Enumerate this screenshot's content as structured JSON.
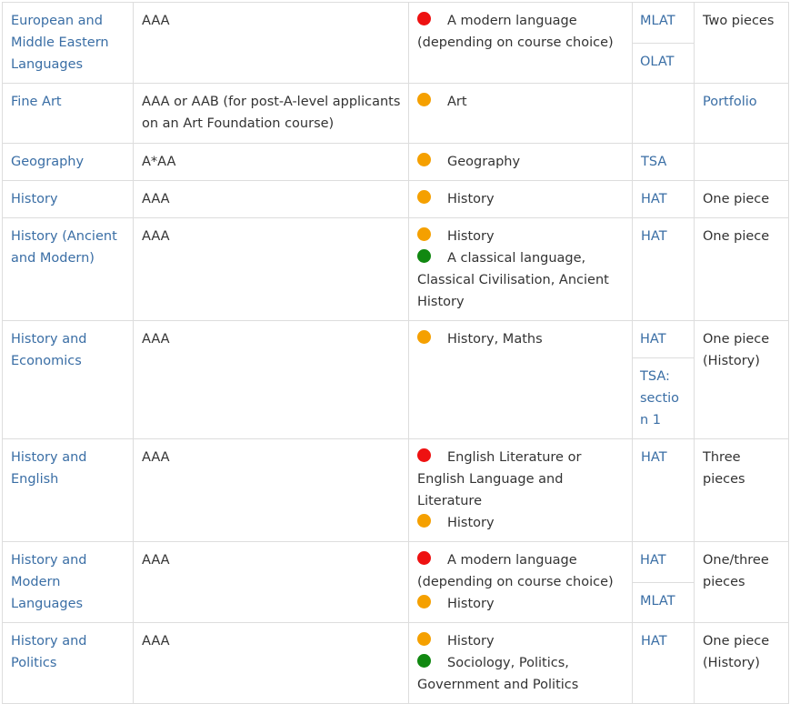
{
  "colors": {
    "link": "#3a6ea5",
    "essential": "#ee1111",
    "recommended": "#f5a000",
    "helpful": "#118811",
    "border": "#dddddd"
  },
  "rows": [
    {
      "course": "European and Middle Eastern Languages",
      "grades": "AAA",
      "subjects": [
        {
          "level": "essential",
          "text": "A modern language (depending on course choice)"
        }
      ],
      "tests": [
        "MLAT",
        "OLAT"
      ],
      "written_work": "Two pieces"
    },
    {
      "course": "Fine Art",
      "grades": "AAA or AAB (for post-A-level applicants on an Art Foundation course)",
      "subjects": [
        {
          "level": "recommended",
          "text": "Art"
        }
      ],
      "tests": [],
      "written_work": "Portfolio"
    },
    {
      "course": "Geography",
      "grades": "A*AA",
      "subjects": [
        {
          "level": "recommended",
          "text": "Geography"
        }
      ],
      "tests": [
        "TSA"
      ],
      "written_work": ""
    },
    {
      "course": "History",
      "grades": "AAA",
      "subjects": [
        {
          "level": "recommended",
          "text": "History"
        }
      ],
      "tests": [
        "HAT"
      ],
      "written_work": "One piece"
    },
    {
      "course": "History (Ancient and Modern)",
      "grades": "AAA",
      "subjects": [
        {
          "level": "recommended",
          "text": "History"
        },
        {
          "level": "helpful",
          "text": "A classical language, Classical Civilisation, Ancient History"
        }
      ],
      "tests": [
        "HAT"
      ],
      "written_work": "One piece"
    },
    {
      "course": "History and Economics",
      "grades": "AAA",
      "subjects": [
        {
          "level": "recommended",
          "text": "History, Maths"
        }
      ],
      "tests": [
        "HAT",
        "TSA: section 1"
      ],
      "written_work": "One piece (History)"
    },
    {
      "course": "History and English",
      "grades": "AAA",
      "subjects": [
        {
          "level": "essential",
          "text": "English Literature or English Language and Literature"
        },
        {
          "level": "recommended",
          "text": "History"
        }
      ],
      "tests": [
        "HAT"
      ],
      "written_work": "Three pieces"
    },
    {
      "course": "History and Modern Languages",
      "grades": "AAA",
      "subjects": [
        {
          "level": "essential",
          "text": "A modern language (depending on course choice)"
        },
        {
          "level": "recommended",
          "text": "History"
        }
      ],
      "tests": [
        "HAT",
        "MLAT"
      ],
      "written_work": "One/three pieces"
    },
    {
      "course": "History and Politics",
      "grades": "AAA",
      "subjects": [
        {
          "level": "recommended",
          "text": "History"
        },
        {
          "level": "helpful",
          "text": "Sociology, Politics, Government and Politics"
        }
      ],
      "tests": [
        "HAT"
      ],
      "written_work": "One piece (History)"
    }
  ]
}
